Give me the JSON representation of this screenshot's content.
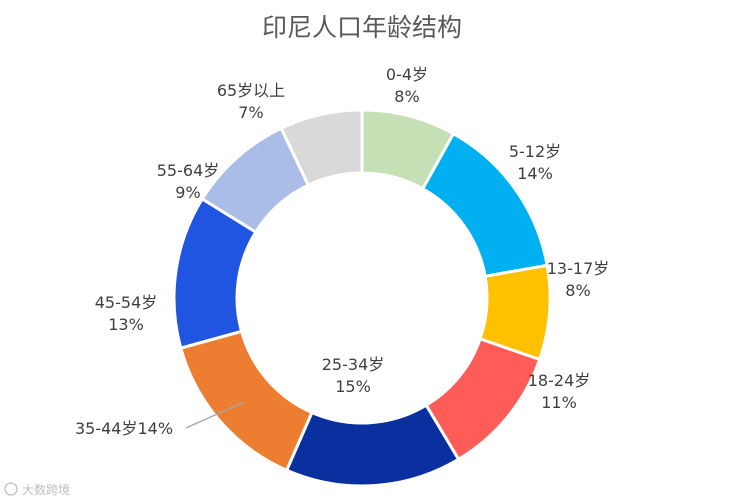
{
  "chart_data": {
    "type": "pie",
    "variant": "donut",
    "title": "印尼人口年龄结构",
    "legend": "none",
    "slices": [
      {
        "label": "0-4岁",
        "value": 8,
        "value_label": "8%",
        "color": "#c5e0b4"
      },
      {
        "label": "5-12岁",
        "value": 14,
        "value_label": "14%",
        "color": "#00b0f0"
      },
      {
        "label": "13-17岁",
        "value": 8,
        "value_label": "8%",
        "color": "#ffc000"
      },
      {
        "label": "18-24岁",
        "value": 11,
        "value_label": "11%",
        "color": "#ff5b57"
      },
      {
        "label": "25-34岁",
        "value": 15,
        "value_label": "15%",
        "color": "#0a2f9e"
      },
      {
        "label": "35-44岁",
        "value": 14,
        "value_label": "14%",
        "color": "#ed7d31"
      },
      {
        "label": "45-54岁",
        "value": 13,
        "value_label": "13%",
        "color": "#1f55e0"
      },
      {
        "label": "55-64岁",
        "value": 9,
        "value_label": "9%",
        "color": "#a9bde6"
      },
      {
        "label": "65岁以上",
        "value": 7,
        "value_label": "7%",
        "color": "#d9d9d9"
      }
    ]
  },
  "watermark": "大数跨境"
}
